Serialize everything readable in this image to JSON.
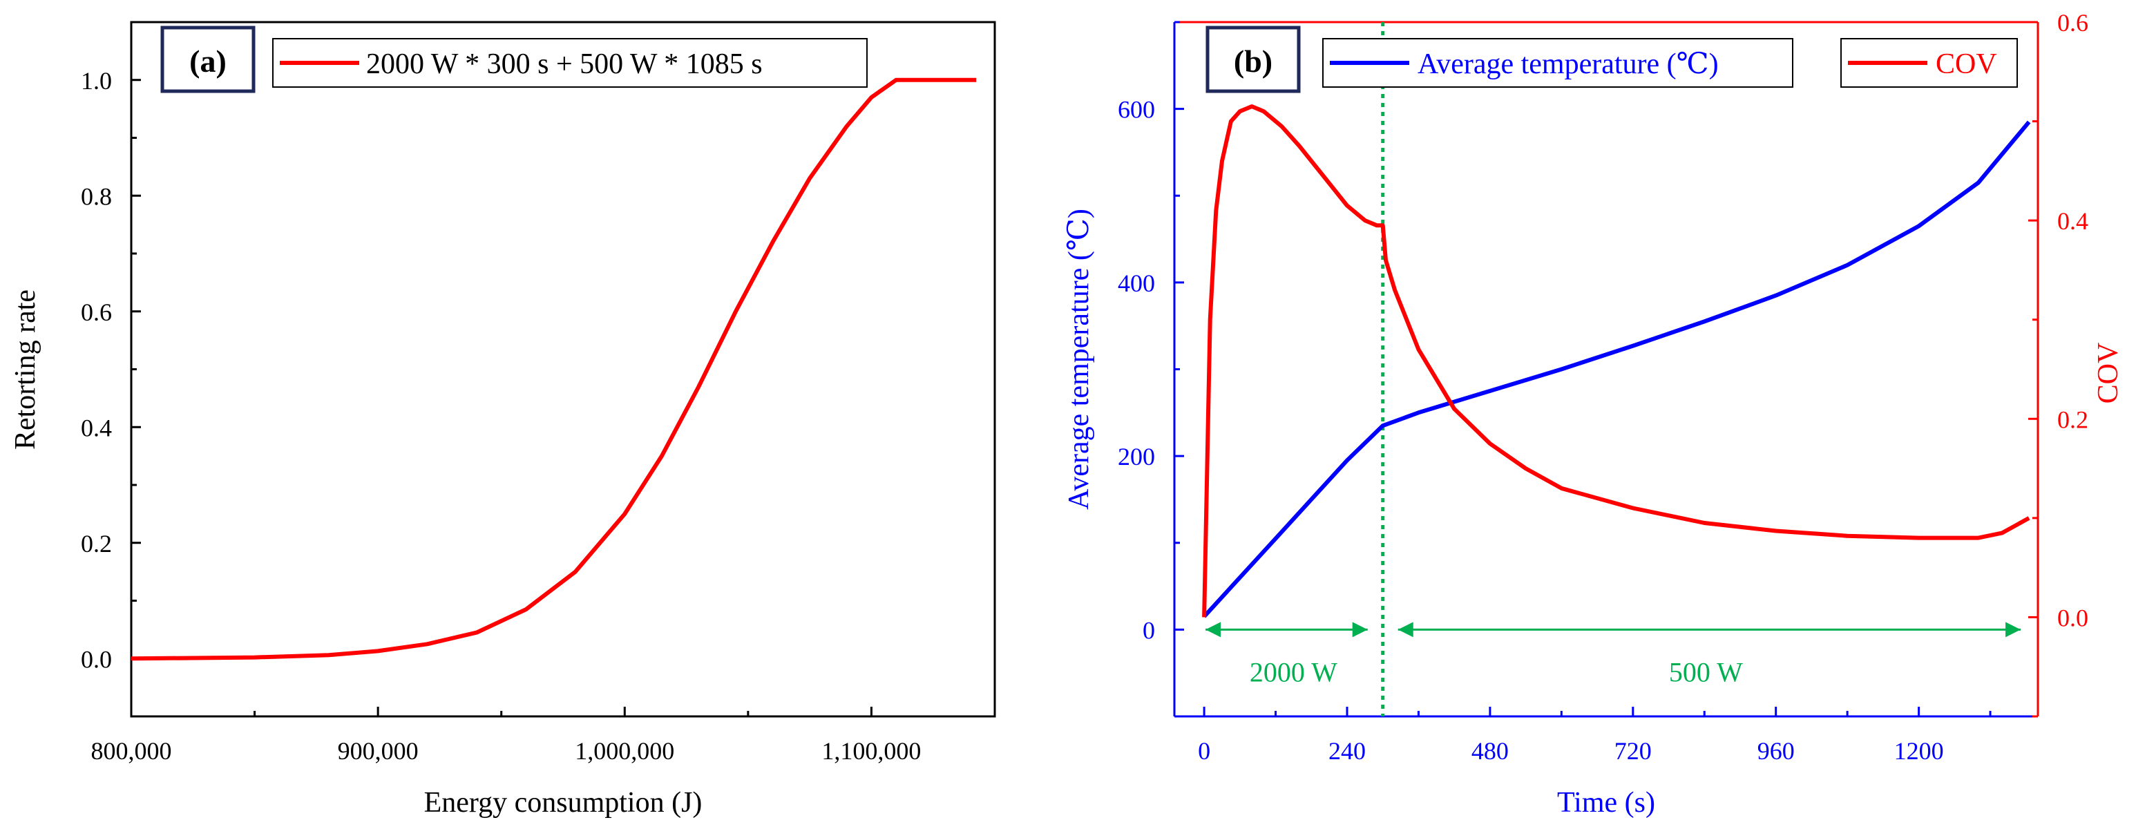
{
  "colors": {
    "red": "#ff0000",
    "blue": "#0000ff",
    "green": "#00b050",
    "navy": "#1f2a5a",
    "black": "#000000"
  },
  "chart_data": [
    {
      "panel": "(a)",
      "type": "line",
      "xlabel": "Energy consumption (J)",
      "ylabel": "Retorting rate",
      "xlim": [
        800000,
        1150000
      ],
      "ylim": [
        -0.1,
        1.1
      ],
      "xticks": [
        800000,
        900000,
        1000000,
        1100000
      ],
      "xtick_labels": [
        "800,000",
        "900,000",
        "1,000,000",
        "1,100,000"
      ],
      "yticks": [
        0.0,
        0.2,
        0.4,
        0.6,
        0.8,
        1.0
      ],
      "ytick_labels": [
        "0.0",
        "0.2",
        "0.4",
        "0.6",
        "0.8",
        "1.0"
      ],
      "legend": [
        "2000 W * 300 s + 500 W * 1085 s"
      ],
      "legend_position": "top-right",
      "series": [
        {
          "name": "2000 W * 300 s + 500 W * 1085 s",
          "color": "#ff0000",
          "x": [
            800000,
            850000,
            880000,
            900000,
            920000,
            940000,
            960000,
            980000,
            1000000,
            1015000,
            1030000,
            1045000,
            1060000,
            1075000,
            1090000,
            1100000,
            1110000,
            1142500
          ],
          "y": [
            0.0,
            0.002,
            0.006,
            0.013,
            0.025,
            0.045,
            0.085,
            0.15,
            0.25,
            0.35,
            0.47,
            0.6,
            0.72,
            0.83,
            0.92,
            0.97,
            1.0,
            1.0
          ]
        }
      ]
    },
    {
      "panel": "(b)",
      "type": "line",
      "xlabel": "Time (s)",
      "ylabel": "Average temperature (℃)",
      "ylabel_right": "COV",
      "xlim": [
        -50,
        1400
      ],
      "ylim": [
        -100,
        700
      ],
      "ylim_right": [
        -0.1,
        0.6
      ],
      "xticks": [
        0,
        240,
        480,
        720,
        960,
        1200
      ],
      "xtick_labels": [
        "0",
        "240",
        "480",
        "720",
        "960",
        "1200"
      ],
      "yticks": [
        0,
        200,
        400,
        600
      ],
      "ytick_labels": [
        "0",
        "200",
        "400",
        "600"
      ],
      "yticks_right": [
        0.0,
        0.2,
        0.4,
        0.6
      ],
      "ytick_labels_right": [
        "0.0",
        "0.2",
        "0.4",
        "0.6"
      ],
      "legend": [
        "Average temperature (℃)",
        "COV"
      ],
      "legend_position": "top",
      "vline_x": 300,
      "annotations": [
        {
          "text": "2000 W",
          "x_from": 0,
          "x_to": 300
        },
        {
          "text": "500 W",
          "x_from": 300,
          "x_to": 1385
        }
      ],
      "series": [
        {
          "name": "Average temperature (℃)",
          "axis": "left",
          "color": "#0000ff",
          "x": [
            0,
            60,
            120,
            180,
            240,
            300,
            360,
            480,
            600,
            720,
            840,
            960,
            1080,
            1200,
            1300,
            1385
          ],
          "y": [
            15,
            60,
            105,
            150,
            195,
            235,
            250,
            275,
            300,
            327,
            355,
            385,
            420,
            465,
            515,
            585
          ]
        },
        {
          "name": "COV",
          "axis": "right",
          "color": "#ff0000",
          "x": [
            0,
            5,
            10,
            20,
            30,
            45,
            60,
            80,
            100,
            130,
            160,
            200,
            240,
            270,
            290,
            300,
            305,
            320,
            360,
            420,
            480,
            540,
            600,
            720,
            840,
            960,
            1080,
            1200,
            1250,
            1300,
            1340,
            1385
          ],
          "y": [
            0.0,
            0.15,
            0.3,
            0.41,
            0.46,
            0.5,
            0.51,
            0.515,
            0.51,
            0.495,
            0.475,
            0.445,
            0.415,
            0.4,
            0.395,
            0.395,
            0.36,
            0.33,
            0.27,
            0.21,
            0.175,
            0.15,
            0.13,
            0.11,
            0.095,
            0.087,
            0.082,
            0.08,
            0.08,
            0.08,
            0.085,
            0.1
          ]
        }
      ]
    }
  ]
}
